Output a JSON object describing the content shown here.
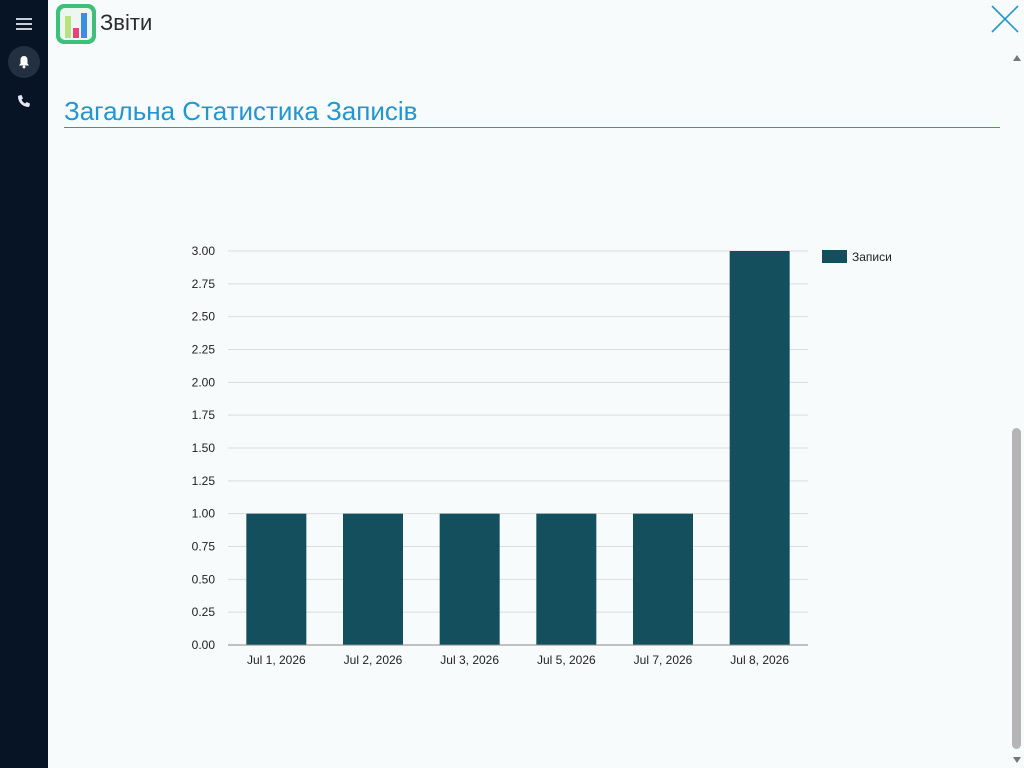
{
  "app": {
    "title": "Звіти"
  },
  "sidebar": {
    "items": [
      {
        "icon": "menu-icon"
      },
      {
        "icon": "bell-icon"
      },
      {
        "icon": "phone-icon"
      }
    ]
  },
  "section": {
    "title": "Загальна Статистика Записів"
  },
  "colors": {
    "bar": "#134f5c",
    "accent": "#2196d3",
    "sidebar": "#071426"
  },
  "chart_data": {
    "type": "bar",
    "categories": [
      "Jul 1, 2026",
      "Jul 2, 2026",
      "Jul 3, 2026",
      "Jul 5, 2026",
      "Jul 7, 2026",
      "Jul 8, 2026"
    ],
    "series": [
      {
        "name": "Записи",
        "values": [
          1,
          1,
          1,
          1,
          1,
          3
        ]
      }
    ],
    "ylim": [
      0,
      3
    ],
    "yticks": [
      "0.00",
      "0.25",
      "0.50",
      "0.75",
      "1.00",
      "1.25",
      "1.50",
      "1.75",
      "2.00",
      "2.25",
      "2.50",
      "2.75",
      "3.00"
    ],
    "grid": true,
    "legend": "top-right"
  }
}
